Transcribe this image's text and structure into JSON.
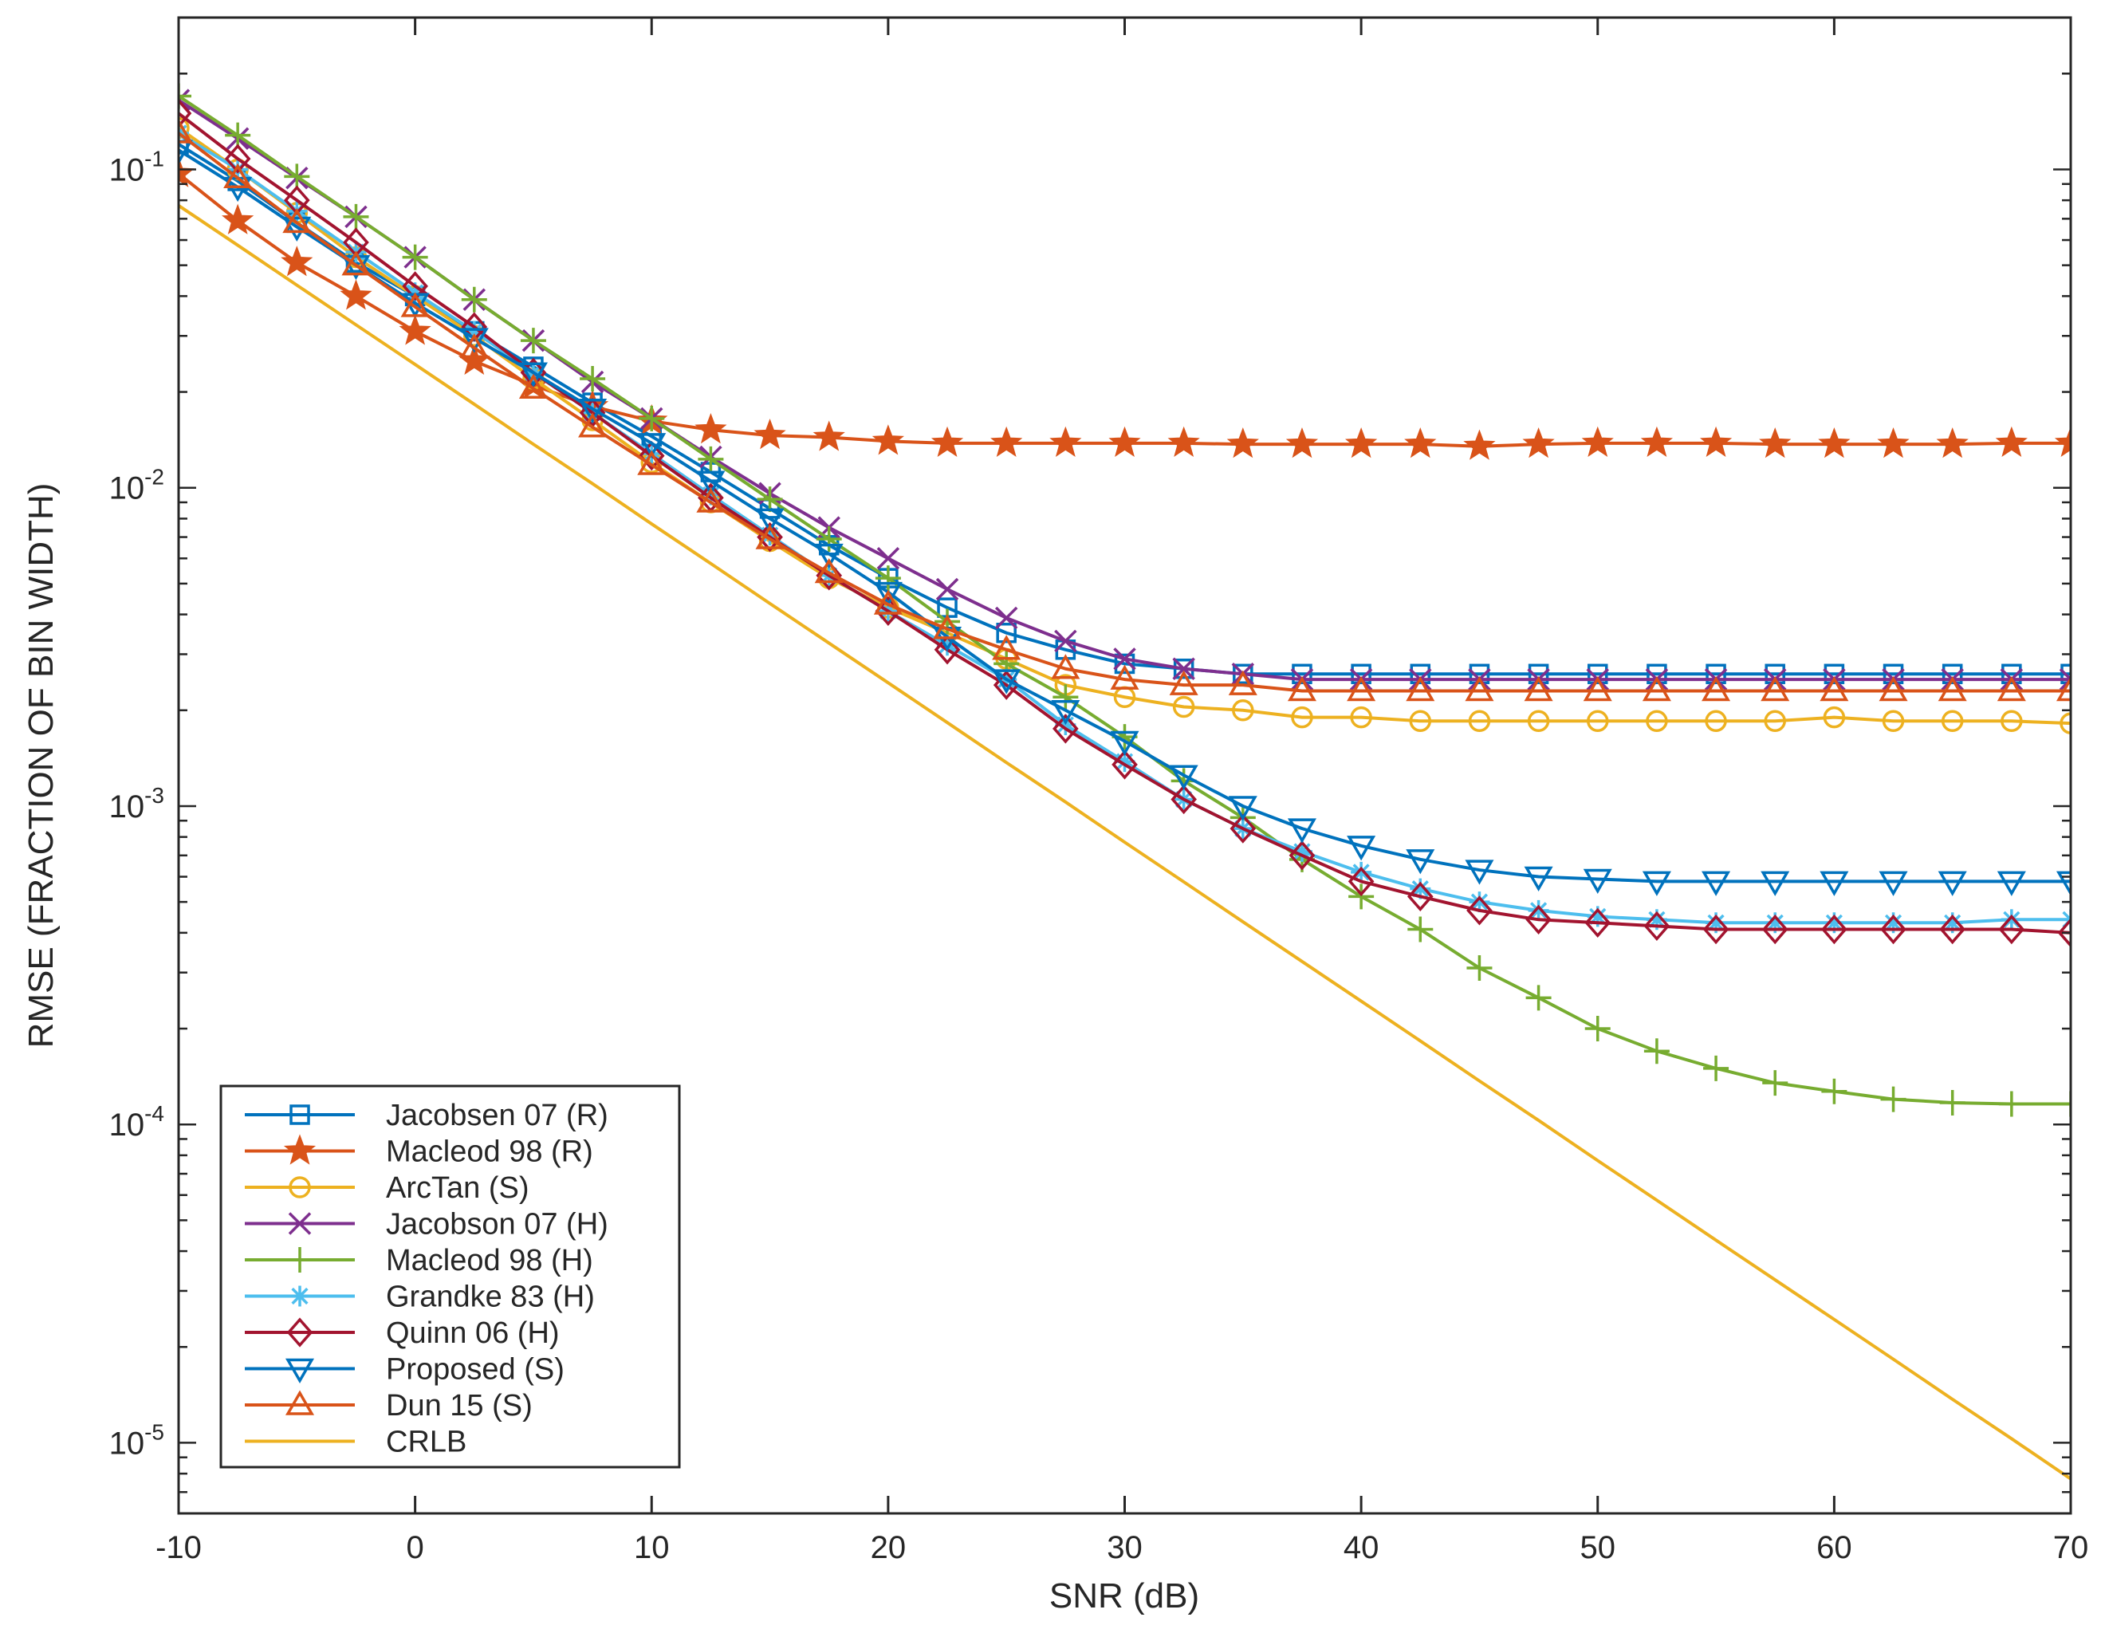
{
  "chart_data": {
    "type": "line",
    "title": "",
    "xlabel": "SNR (dB)",
    "ylabel": "RMSE (FRACTION OF BIN WIDTH)",
    "xlim": [
      -10,
      70
    ],
    "ylim": [
      6e-06,
      0.3
    ],
    "yscale": "log",
    "grid": false,
    "legend_position": "bottom-left",
    "x_ticks": [
      -10,
      0,
      10,
      20,
      30,
      40,
      50,
      60,
      70
    ],
    "x_tick_labels": [
      "-10",
      "0",
      "10",
      "20",
      "30",
      "40",
      "50",
      "60",
      "70"
    ],
    "y_ticks": [
      0.1,
      0.01,
      0.001,
      0.0001,
      1e-05
    ],
    "y_tick_labels": [
      {
        "base": "10",
        "exp": "-1"
      },
      {
        "base": "10",
        "exp": "-2"
      },
      {
        "base": "10",
        "exp": "-3"
      },
      {
        "base": "10",
        "exp": "-4"
      },
      {
        "base": "10",
        "exp": "-5"
      }
    ],
    "x": [
      -10,
      -7.5,
      -5,
      -2.5,
      0,
      2.5,
      5,
      7.5,
      10,
      12.5,
      15,
      17.5,
      20,
      22.5,
      25,
      27.5,
      30,
      32.5,
      35,
      37.5,
      40,
      42.5,
      45,
      47.5,
      50,
      52.5,
      55,
      57.5,
      60,
      62.5,
      65,
      67.5,
      70
    ],
    "series": [
      {
        "name": "Jacobsen 07 (R)",
        "color": "#0072BD",
        "marker": "square",
        "values": [
          0.12,
          0.092,
          0.068,
          0.051,
          0.04,
          0.031,
          0.024,
          0.0185,
          0.0145,
          0.0112,
          0.0086,
          0.0066,
          0.0052,
          0.0042,
          0.0035,
          0.0031,
          0.0028,
          0.0027,
          0.0026,
          0.0026,
          0.0026,
          0.0026,
          0.0026,
          0.0026,
          0.0026,
          0.0026,
          0.0026,
          0.0026,
          0.0026,
          0.0026,
          0.0026,
          0.0026,
          0.0026
        ]
      },
      {
        "name": "Macleod 98 (R)",
        "color": "#D95319",
        "marker": "star",
        "values": [
          0.097,
          0.069,
          0.051,
          0.04,
          0.031,
          0.025,
          0.021,
          0.018,
          0.0162,
          0.0152,
          0.0146,
          0.0144,
          0.014,
          0.0138,
          0.0138,
          0.0138,
          0.0138,
          0.0138,
          0.0137,
          0.0137,
          0.0137,
          0.0137,
          0.0135,
          0.0137,
          0.0138,
          0.0138,
          0.0138,
          0.0137,
          0.0137,
          0.0137,
          0.0137,
          0.0138,
          0.0138
        ]
      },
      {
        "name": "ArcTan (S)",
        "color": "#EDB120",
        "marker": "circle",
        "values": [
          0.135,
          0.1,
          0.073,
          0.053,
          0.04,
          0.03,
          0.022,
          0.0163,
          0.012,
          0.009,
          0.0068,
          0.0052,
          0.0042,
          0.0035,
          0.0029,
          0.0024,
          0.0022,
          0.00205,
          0.002,
          0.0019,
          0.0019,
          0.00185,
          0.00185,
          0.00185,
          0.00185,
          0.00185,
          0.00185,
          0.00185,
          0.0019,
          0.00185,
          0.00185,
          0.00185,
          0.00182
        ]
      },
      {
        "name": "Jacobson 07 (H)",
        "color": "#7E2F8E",
        "marker": "x",
        "values": [
          0.165,
          0.125,
          0.094,
          0.071,
          0.053,
          0.039,
          0.029,
          0.0215,
          0.0165,
          0.0125,
          0.0096,
          0.0075,
          0.006,
          0.0048,
          0.0039,
          0.0033,
          0.0029,
          0.0027,
          0.0026,
          0.0025,
          0.0025,
          0.0025,
          0.0025,
          0.0025,
          0.0025,
          0.0025,
          0.0025,
          0.0025,
          0.0025,
          0.0025,
          0.0025,
          0.0025,
          0.0025
        ]
      },
      {
        "name": "Macleod 98 (H)",
        "color": "#77AC30",
        "marker": "plus",
        "values": [
          0.17,
          0.128,
          0.095,
          0.071,
          0.053,
          0.039,
          0.029,
          0.022,
          0.0165,
          0.0123,
          0.0092,
          0.0069,
          0.0052,
          0.0038,
          0.0028,
          0.0022,
          0.00165,
          0.0012,
          0.00092,
          0.00068,
          0.00052,
          0.00041,
          0.00031,
          0.00025,
          0.0002,
          0.00017,
          0.00015,
          0.000135,
          0.000127,
          0.00012,
          0.000117,
          0.000116,
          0.000116
        ]
      },
      {
        "name": "Grandke 83 (H)",
        "color": "#4DBEEE",
        "marker": "asterisk",
        "values": [
          0.13,
          0.1,
          0.074,
          0.055,
          0.041,
          0.031,
          0.023,
          0.0172,
          0.0128,
          0.0095,
          0.0071,
          0.0053,
          0.0041,
          0.0032,
          0.0025,
          0.0018,
          0.00138,
          0.00105,
          0.00085,
          0.00072,
          0.00062,
          0.00055,
          0.0005,
          0.00047,
          0.00045,
          0.00044,
          0.00043,
          0.00043,
          0.00043,
          0.00043,
          0.00043,
          0.00044,
          0.00044
        ]
      },
      {
        "name": "Quinn 06 (H)",
        "color": "#A2142F",
        "marker": "diamond",
        "values": [
          0.15,
          0.108,
          0.08,
          0.059,
          0.043,
          0.032,
          0.023,
          0.0172,
          0.0126,
          0.0093,
          0.007,
          0.0053,
          0.0041,
          0.0031,
          0.0024,
          0.00175,
          0.00135,
          0.00105,
          0.00085,
          0.0007,
          0.00058,
          0.00052,
          0.00047,
          0.00044,
          0.00043,
          0.00042,
          0.00041,
          0.00041,
          0.00041,
          0.00041,
          0.00041,
          0.00041,
          0.0004
        ]
      },
      {
        "name": "Proposed (S)",
        "color": "#0072BD",
        "marker": "triangle-down",
        "values": [
          0.115,
          0.088,
          0.066,
          0.05,
          0.038,
          0.0295,
          0.023,
          0.0177,
          0.0138,
          0.0105,
          0.008,
          0.0062,
          0.0047,
          0.0034,
          0.0025,
          0.002,
          0.0016,
          0.00125,
          0.001,
          0.00085,
          0.00075,
          0.00068,
          0.00063,
          0.0006,
          0.00059,
          0.00058,
          0.00058,
          0.00058,
          0.00058,
          0.00058,
          0.00058,
          0.00058,
          0.00058
        ]
      },
      {
        "name": "Dun 15 (S)",
        "color": "#D95319",
        "marker": "triangle-up",
        "values": [
          0.13,
          0.094,
          0.068,
          0.05,
          0.037,
          0.0275,
          0.0205,
          0.0155,
          0.0118,
          0.009,
          0.0069,
          0.0054,
          0.0043,
          0.0036,
          0.0031,
          0.0027,
          0.0025,
          0.0024,
          0.0024,
          0.0023,
          0.0023,
          0.0023,
          0.0023,
          0.0023,
          0.0023,
          0.0023,
          0.0023,
          0.0023,
          0.0023,
          0.0023,
          0.0023,
          0.0023,
          0.0023
        ]
      },
      {
        "name": "CRLB",
        "color": "#EDB120",
        "marker": "none",
        "values": [
          0.077,
          0.0578,
          0.0433,
          0.0325,
          0.0244,
          0.0183,
          0.0137,
          0.0103,
          0.0077,
          0.00578,
          0.00433,
          0.00325,
          0.00244,
          0.00183,
          0.00137,
          0.00103,
          0.00077,
          0.000578,
          0.000433,
          0.000325,
          0.000244,
          0.000183,
          0.000137,
          0.000103,
          7.7e-05,
          5.78e-05,
          4.33e-05,
          3.25e-05,
          2.44e-05,
          1.83e-05,
          1.37e-05,
          1.03e-05,
          7.7e-06
        ]
      }
    ]
  }
}
